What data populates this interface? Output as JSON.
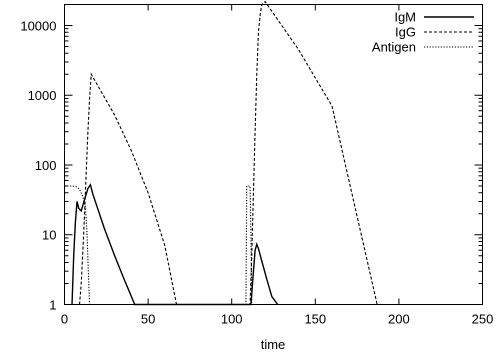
{
  "chart_data": {
    "type": "line",
    "xlabel": "time",
    "ylabel": "",
    "xlim": [
      0,
      250
    ],
    "ylim": [
      1,
      20000
    ],
    "y_scale": "log",
    "x_ticks": [
      0,
      50,
      100,
      150,
      200,
      250
    ],
    "x_tick_labels": [
      "0",
      "50",
      "100",
      "150",
      "200",
      "250"
    ],
    "y_ticks": [
      1,
      10,
      100,
      1000,
      10000
    ],
    "y_tick_labels": [
      "1",
      "10",
      "100",
      "1000",
      "10000"
    ],
    "grid": false,
    "legend_position": "top-right",
    "series": [
      {
        "name": "IgM",
        "dash": "solid",
        "x": [
          4.5,
          5.5,
          6.5,
          7.5,
          8.5,
          10,
          12,
          14,
          15.5,
          17,
          24,
          30,
          36,
          42,
          111.5,
          113,
          114,
          115,
          116,
          118,
          121,
          124,
          127.5
        ],
        "y": [
          1,
          5,
          15,
          30,
          24,
          22,
          32,
          46,
          52,
          38,
          12,
          5,
          2.2,
          1,
          1,
          3,
          6,
          7.3,
          6.3,
          4.2,
          2.3,
          1.3,
          1
        ]
      },
      {
        "name": "IgG",
        "dash": "dashed",
        "x": [
          9,
          10,
          11,
          12,
          13,
          14,
          15,
          16,
          30,
          40,
          50,
          60,
          67,
          111,
          112,
          113,
          114,
          115,
          116,
          117,
          118,
          120,
          140,
          160,
          187
        ],
        "y": [
          1,
          2,
          6,
          20,
          80,
          300,
          900,
          2000,
          520,
          160,
          40,
          7,
          1,
          1,
          5,
          40,
          300,
          2000,
          8000,
          14000,
          20000,
          22000,
          4500,
          700,
          1
        ]
      },
      {
        "name": "Antigen",
        "dash": "dotted",
        "x": [
          0,
          4,
          7,
          9,
          11,
          12.5,
          13.5,
          14.5,
          15,
          108.5,
          109,
          110,
          111,
          111.5,
          112
        ],
        "y": [
          50,
          50,
          49,
          45,
          35,
          25,
          10,
          2,
          1,
          1,
          50,
          50,
          50,
          10,
          1
        ]
      }
    ]
  }
}
